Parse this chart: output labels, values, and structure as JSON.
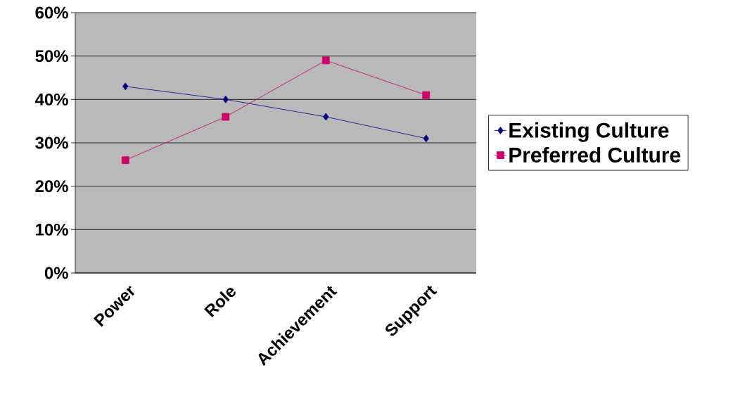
{
  "chart_data": {
    "type": "line",
    "categories": [
      "Power",
      "Role",
      "Achievement",
      "Support"
    ],
    "series": [
      {
        "name": "Existing Culture",
        "color": "#000080",
        "marker": "diamond",
        "values": [
          43,
          40,
          36,
          31
        ]
      },
      {
        "name": "Preferred Culture",
        "color": "#cc0066",
        "marker": "square",
        "values": [
          26,
          36,
          49,
          41
        ]
      }
    ],
    "ylim": [
      0,
      60
    ],
    "yticks": [
      {
        "value": 0,
        "label": "0%"
      },
      {
        "value": 10,
        "label": "10%"
      },
      {
        "value": 20,
        "label": "20%"
      },
      {
        "value": 30,
        "label": "30%"
      },
      {
        "value": 40,
        "label": "40%"
      },
      {
        "value": 50,
        "label": "50%"
      },
      {
        "value": 60,
        "label": "60%"
      }
    ],
    "grid": "y",
    "legend": "right",
    "line_style": "solid"
  }
}
